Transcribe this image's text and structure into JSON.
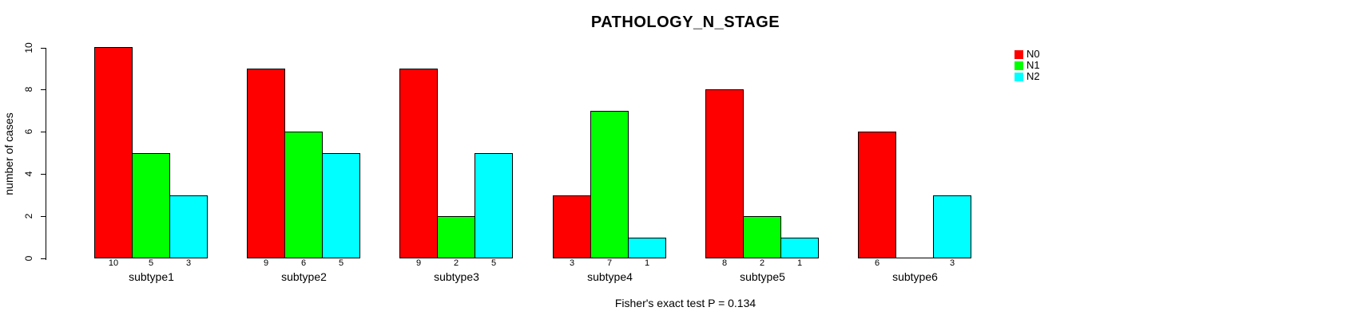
{
  "chart_data": {
    "type": "bar",
    "grouped": true,
    "title": "PATHOLOGY_N_STAGE",
    "xlabel": "",
    "ylabel": "number of cases",
    "categories": [
      "subtype1",
      "subtype2",
      "subtype3",
      "subtype4",
      "subtype5",
      "subtype6"
    ],
    "series": [
      {
        "name": "N0",
        "color": "#ff0000",
        "values": [
          10,
          9,
          9,
          3,
          8,
          6
        ]
      },
      {
        "name": "N1",
        "color": "#00ff00",
        "values": [
          5,
          6,
          2,
          7,
          2,
          0
        ]
      },
      {
        "name": "N2",
        "color": "#00ffff",
        "values": [
          3,
          5,
          5,
          1,
          1,
          3
        ]
      }
    ],
    "bar_value_labels": [
      [
        "10",
        "5",
        "3"
      ],
      [
        "9",
        "6",
        "5"
      ],
      [
        "9",
        "2",
        "5"
      ],
      [
        "3",
        "7",
        "1"
      ],
      [
        "8",
        "2",
        "1"
      ],
      [
        "6",
        "",
        "3"
      ]
    ],
    "ylim": [
      0,
      10
    ],
    "yticks": [
      "0",
      "2",
      "4",
      "6",
      "8",
      "10"
    ],
    "grid": false,
    "legend_position": "top-right",
    "annotation": "Fisher's exact test P = 0.134",
    "axis_color": "#000000",
    "text_color": "#000000",
    "background_color": "#ffffff"
  }
}
